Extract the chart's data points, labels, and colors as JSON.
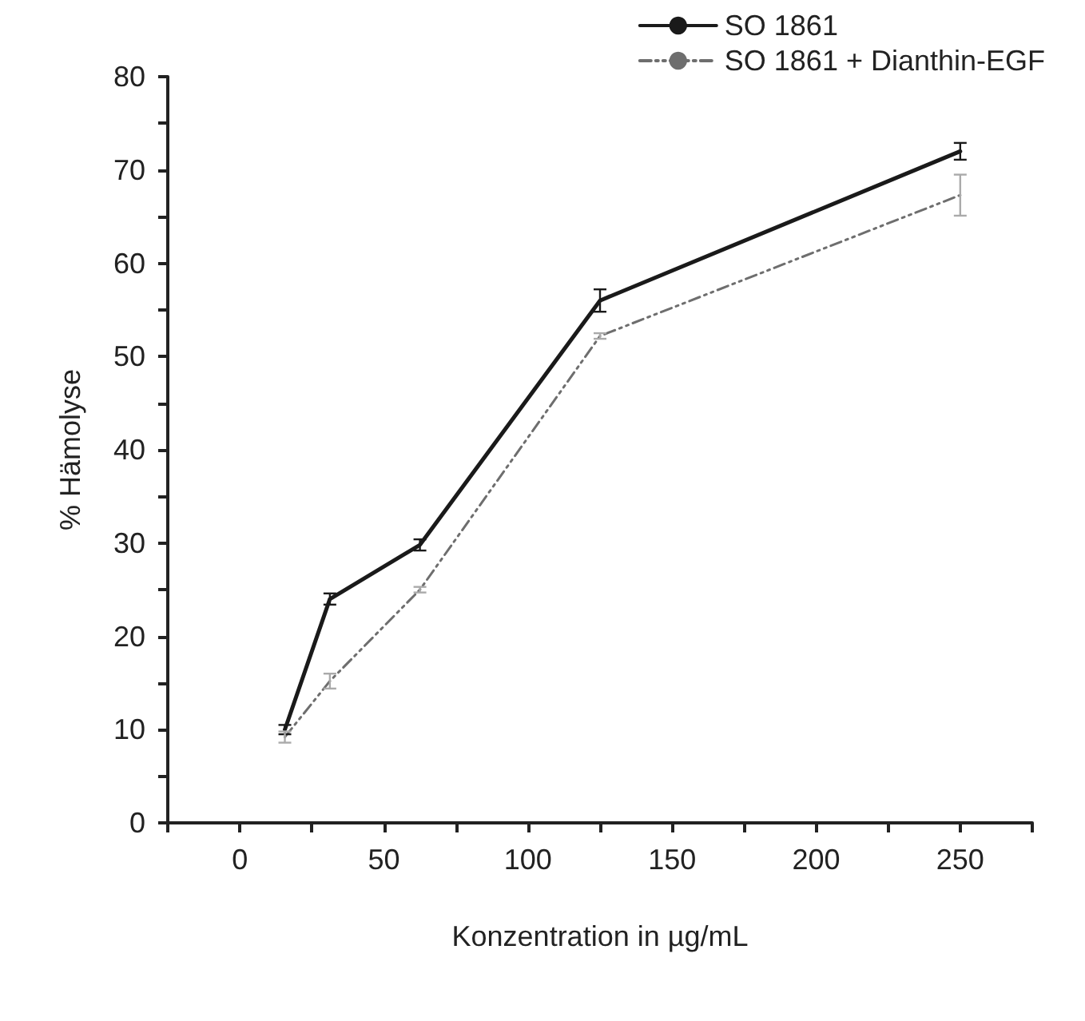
{
  "chart_data": {
    "type": "line",
    "xlabel": "Konzentration in µg/mL",
    "ylabel": "% Hämolyse",
    "x": [
      15.625,
      31.25,
      62.5,
      125,
      250
    ],
    "series": [
      {
        "name": "SO 1861",
        "color": "#1a1a1a",
        "line_style": "solid",
        "values": [
          10,
          24,
          29.8,
          56,
          72
        ],
        "errors": [
          0.5,
          0.6,
          0.6,
          1.2,
          0.9
        ]
      },
      {
        "name": "SO 1861 + Dianthin-EGF",
        "color": "#6e6e6e",
        "line_style": "dashed",
        "values": [
          9.2,
          15.2,
          25,
          52.2,
          67.3
        ],
        "errors": [
          0.6,
          0.8,
          0.3,
          0.3,
          2.2
        ]
      }
    ],
    "xlim": [
      -25,
      275
    ],
    "xticks": [
      {
        "value": -25,
        "label": null
      },
      0,
      {
        "value": 25,
        "label": null
      },
      50,
      {
        "value": 75,
        "label": null
      },
      100,
      {
        "value": 125,
        "label": null
      },
      150,
      {
        "value": 175,
        "label": null
      },
      200,
      {
        "value": 225,
        "label": null
      },
      250,
      {
        "value": 275,
        "label": null
      }
    ],
    "ylim": [
      0,
      80
    ],
    "yticks": [
      0,
      {
        "value": 5,
        "label": null
      },
      10,
      {
        "value": 15,
        "label": null
      },
      20,
      {
        "value": 25,
        "label": null
      },
      30,
      {
        "value": 35,
        "label": null
      },
      40,
      {
        "value": 45,
        "label": null
      },
      50,
      {
        "value": 55,
        "label": null
      },
      60,
      {
        "value": 65,
        "label": null
      },
      70,
      {
        "value": 75,
        "label": null
      },
      80
    ],
    "grid": false,
    "legend": "top right",
    "marker": "none"
  }
}
